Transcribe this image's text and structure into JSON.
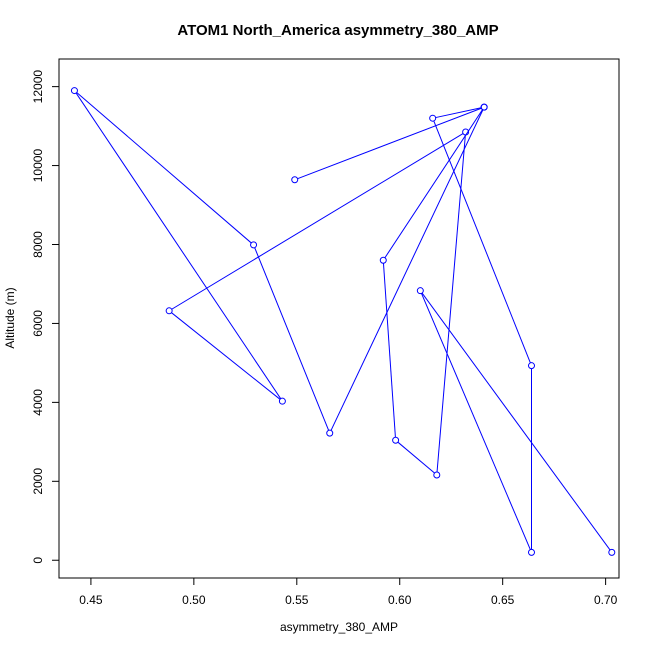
{
  "chart_data": {
    "type": "line",
    "title": "ATOM1 North_America asymmetry_380_AMP",
    "xlabel": "asymmetry_380_AMP",
    "ylabel": "Altitude (m)",
    "xlim": [
      0.4345,
      0.7065
    ],
    "ylim": [
      -450,
      12700
    ],
    "x_ticks": [
      0.45,
      0.5,
      0.55,
      0.6,
      0.65,
      0.7
    ],
    "x_tick_labels": [
      "0.45",
      "0.50",
      "0.55",
      "0.60",
      "0.65",
      "0.70"
    ],
    "y_ticks": [
      0,
      2000,
      4000,
      6000,
      8000,
      10000,
      12000
    ],
    "y_tick_labels": [
      "0",
      "2000",
      "4000",
      "6000",
      "8000",
      "10000",
      "12000"
    ],
    "grid": false,
    "series": [
      {
        "color": "#0000ff",
        "marker": "open-circle",
        "x": [
          0.703,
          0.61,
          0.664,
          0.664,
          0.616,
          0.641,
          0.592,
          0.598,
          0.618,
          0.632,
          0.488,
          0.543,
          0.442,
          0.529,
          0.566,
          0.641,
          0.549
        ],
        "y": [
          200,
          6830,
          200,
          4930,
          11200,
          11480,
          7600,
          3040,
          2160,
          10850,
          6320,
          4030,
          11900,
          7990,
          3220,
          11480,
          9640
        ]
      }
    ]
  }
}
